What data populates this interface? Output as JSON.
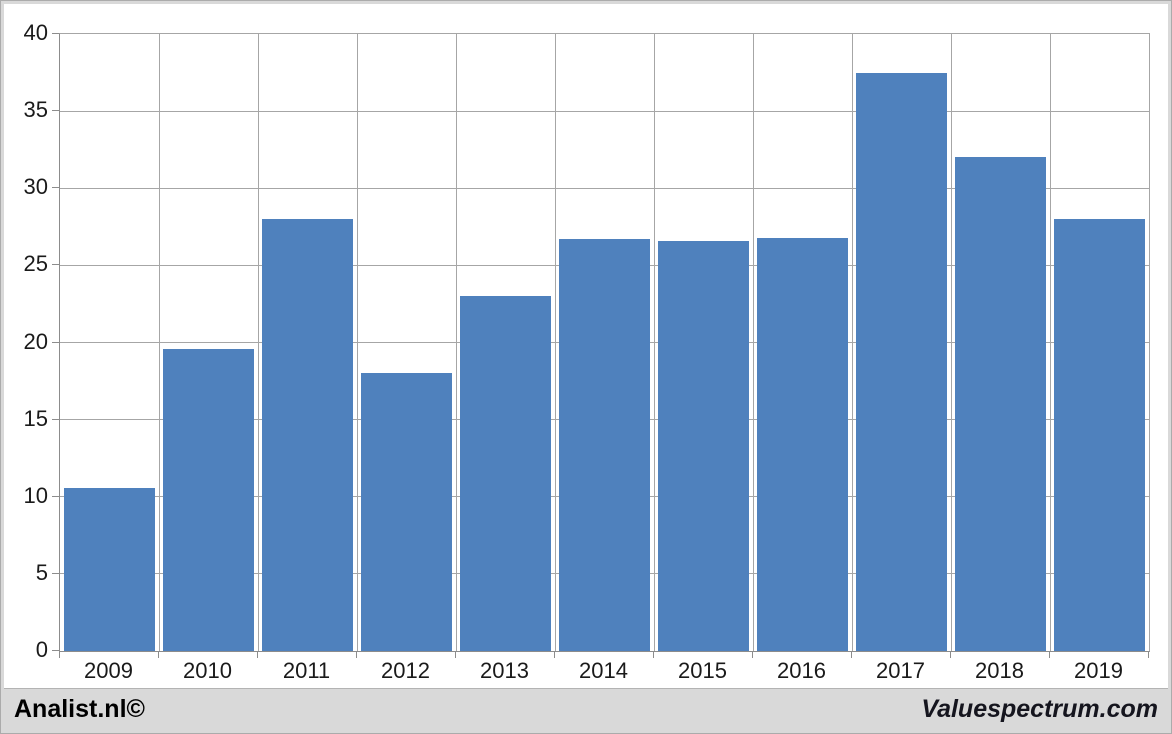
{
  "chart_data": {
    "type": "bar",
    "title": "",
    "xlabel": "",
    "ylabel": "",
    "categories": [
      "2009",
      "2010",
      "2011",
      "2012",
      "2013",
      "2014",
      "2015",
      "2016",
      "2017",
      "2018",
      "2019"
    ],
    "values": [
      10.6,
      19.6,
      28,
      18,
      23,
      26.7,
      26.6,
      26.8,
      37.5,
      32,
      28
    ],
    "ylim": [
      0,
      40
    ],
    "yticks": [
      0,
      5,
      10,
      15,
      20,
      25,
      30,
      35,
      40
    ],
    "grid": "both",
    "legend": "none",
    "bar_gap_fraction": 0.08
  },
  "colors": {
    "bar_fill": "#4F81BD",
    "gridline": "#A6A6A6",
    "axis_line": "#8C8C8C",
    "axis_text": "#1A1A1A",
    "footer_background": "#D9D9D9",
    "footer_left_text": "#000000",
    "footer_right_text": "#15151E"
  },
  "footer": {
    "left": "Analist.nl©",
    "right": "Valuespectrum.com"
  }
}
